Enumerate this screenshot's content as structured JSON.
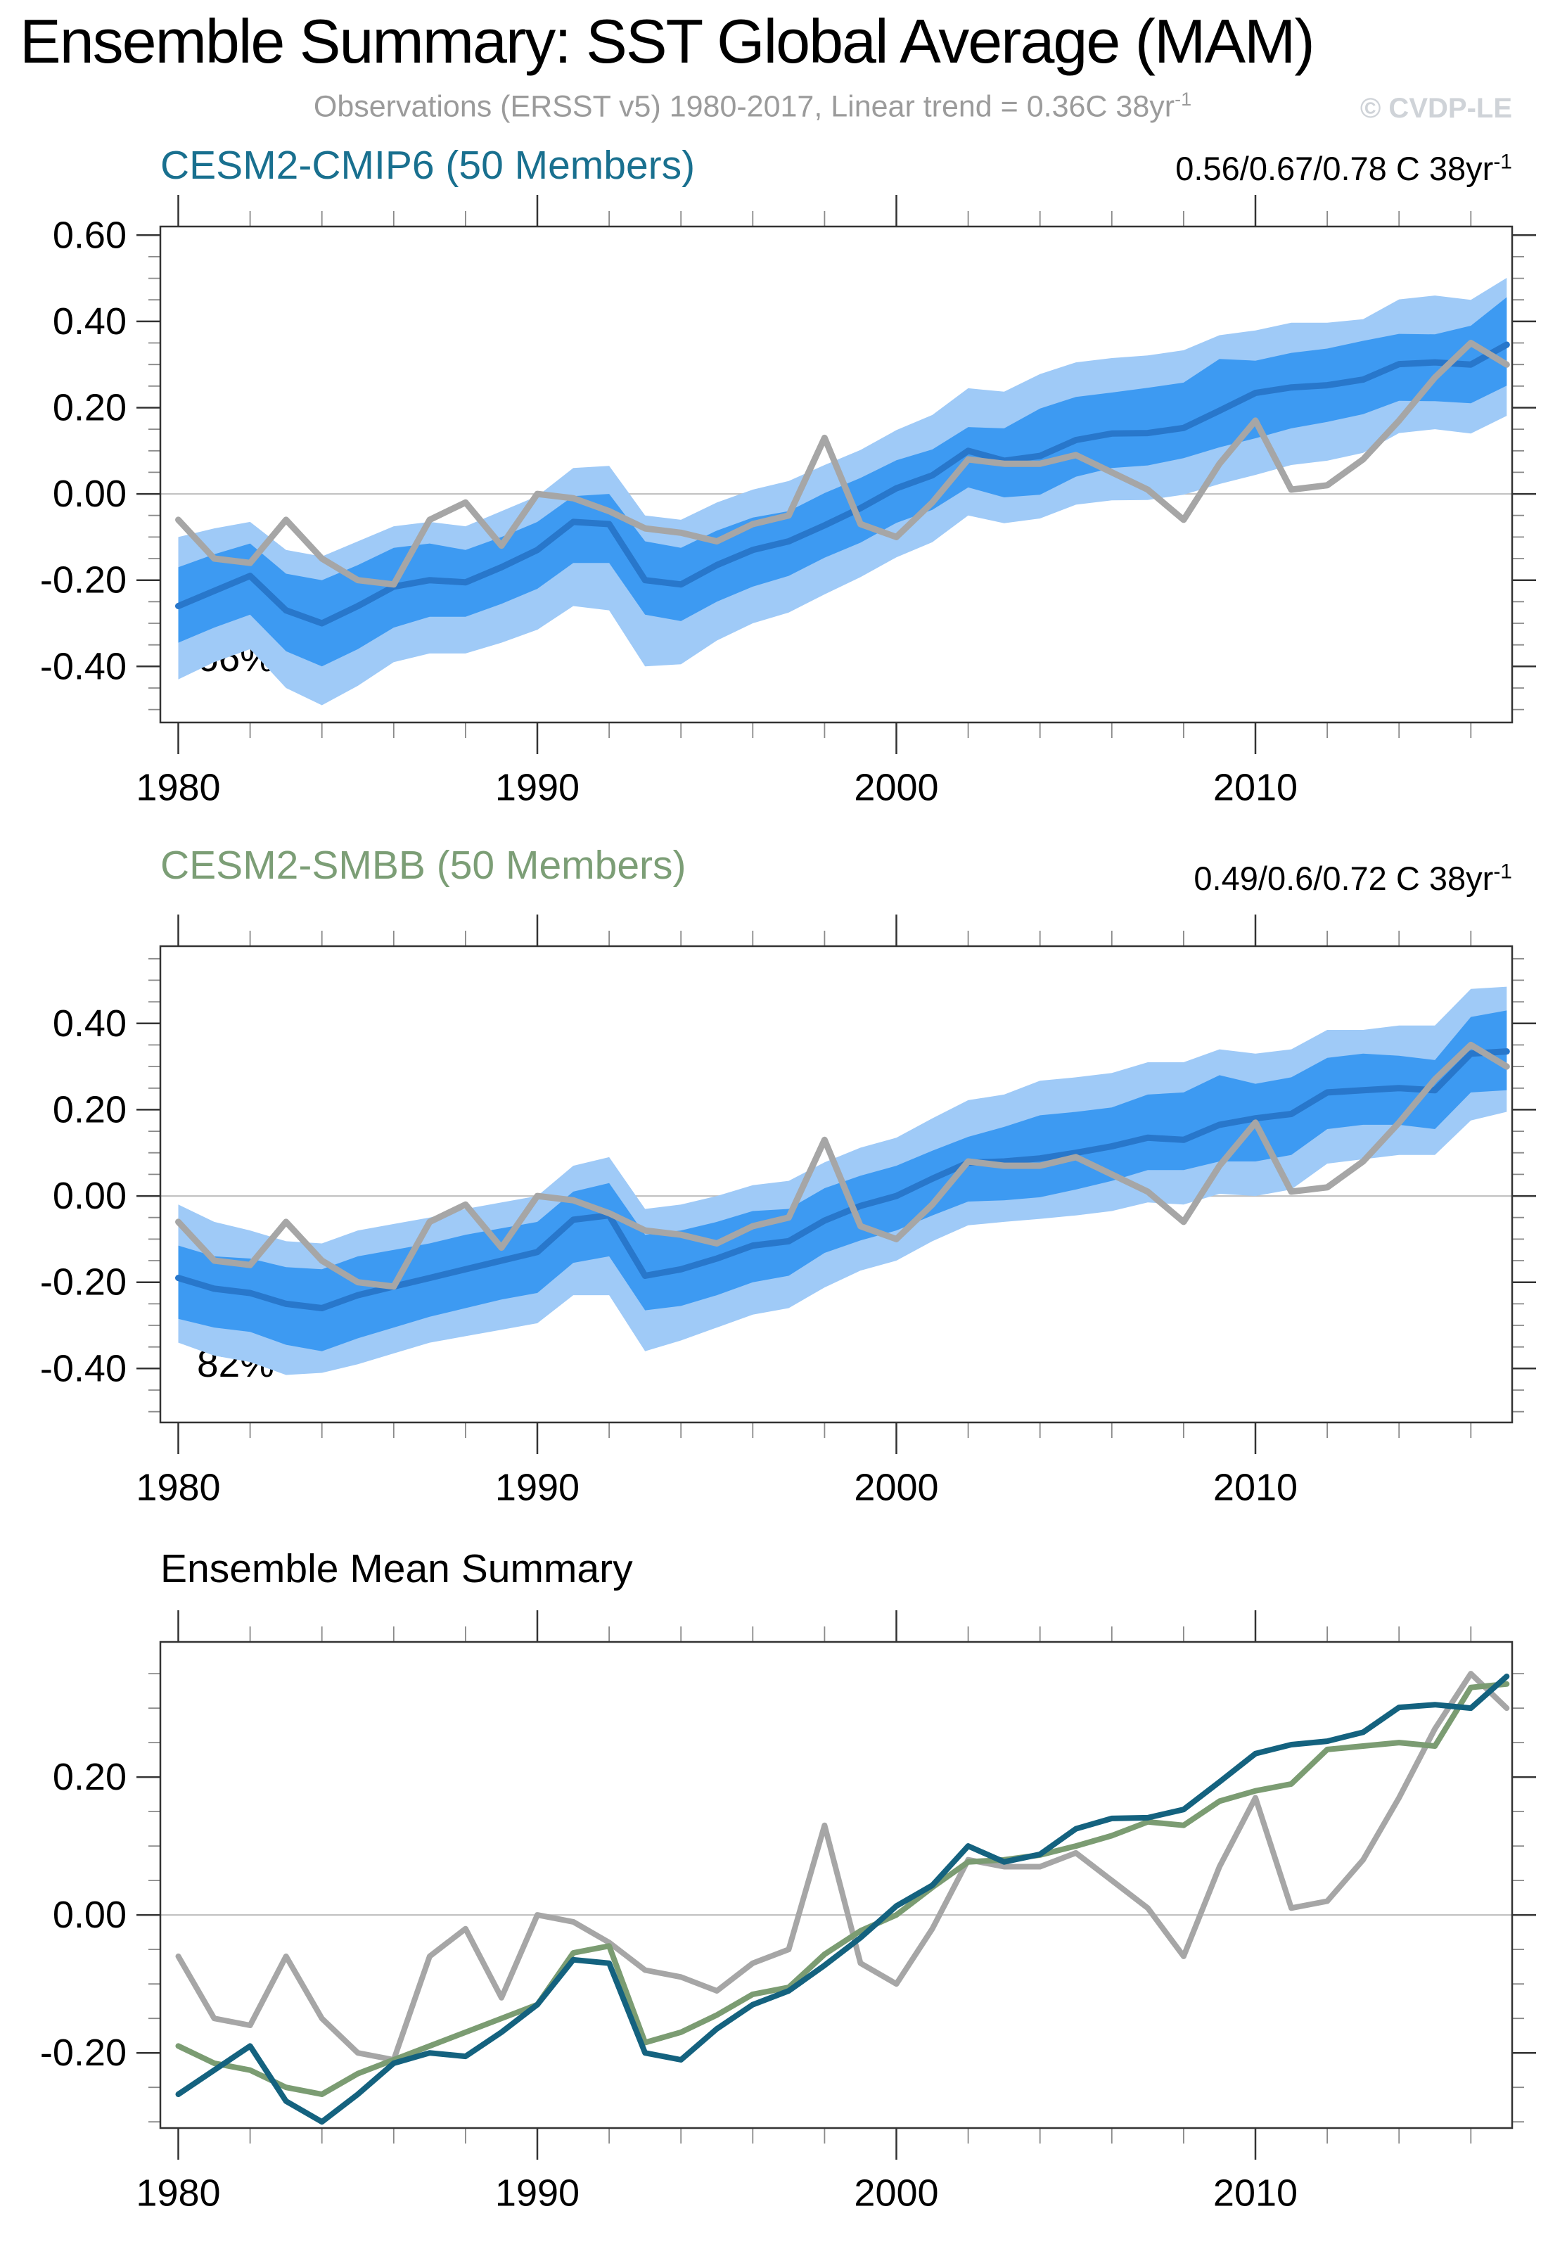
{
  "header": {
    "title": "Ensemble Summary: SST Global Average (MAM)",
    "subtitle": "Observations (ERSST v5) 1980-2017, Linear trend = 0.36C 38yr",
    "subtitle_sup": "-1",
    "watermark": "© CVDP-LE"
  },
  "colors": {
    "obs_line": "#A6A6A6",
    "ensemble_mean_line": "#2877CB",
    "cmip6_accent": "#19708F",
    "smbb_accent": "#7C9E76",
    "inner_band": "#3D9AF2",
    "outer_band": "#9FCAF7",
    "zero_line": "#BDBDBD",
    "axis_frame": "#333333",
    "minor_tick": "#8A8A8A",
    "subtitle_gray": "#9B9B9B",
    "watermark_gray": "#CFD3D8"
  },
  "chart_data": [
    {
      "id": "cesm2-cmip6",
      "type": "line",
      "title": "CESM2-CMIP6 (50 Members)",
      "title_color": "#19708F",
      "trend_label": "0.56/0.67/0.78 C 38yr",
      "trend_sup": "-1",
      "percent_label": "66%",
      "xlim": [
        1979.5,
        2017.15
      ],
      "ylim": [
        -0.53,
        0.62
      ],
      "xticks": [
        1980,
        1990,
        2000,
        2010
      ],
      "yticks": [
        0.6,
        0.4,
        0.2,
        0.0,
        -0.2,
        -0.4
      ],
      "grid": "zero-line-only",
      "x": [
        1980,
        1981,
        1982,
        1983,
        1984,
        1985,
        1986,
        1987,
        1988,
        1989,
        1990,
        1991,
        1992,
        1993,
        1994,
        1995,
        1996,
        1997,
        1998,
        1999,
        2000,
        2001,
        2002,
        2003,
        2004,
        2005,
        2006,
        2007,
        2008,
        2009,
        2010,
        2011,
        2012,
        2013,
        2014,
        2015,
        2016,
        2017
      ],
      "bands": [
        {
          "name": "ensemble-spread-outer",
          "color": "#9FCAF7",
          "upper": [
            -0.1,
            -0.08,
            -0.065,
            -0.13,
            -0.145,
            -0.11,
            -0.075,
            -0.065,
            -0.075,
            -0.04,
            -0.005,
            0.06,
            0.065,
            -0.05,
            -0.06,
            -0.02,
            0.01,
            0.03,
            0.067,
            0.102,
            0.148,
            0.183,
            0.245,
            0.237,
            0.278,
            0.305,
            0.315,
            0.321,
            0.333,
            0.368,
            0.379,
            0.397,
            0.397,
            0.405,
            0.451,
            0.46,
            0.45,
            0.501
          ],
          "lower": [
            -0.43,
            -0.39,
            -0.36,
            -0.45,
            -0.49,
            -0.445,
            -0.39,
            -0.37,
            -0.37,
            -0.345,
            -0.315,
            -0.26,
            -0.27,
            -0.4,
            -0.395,
            -0.34,
            -0.3,
            -0.275,
            -0.233,
            -0.193,
            -0.147,
            -0.112,
            -0.05,
            -0.068,
            -0.057,
            -0.025,
            -0.015,
            -0.014,
            -0.002,
            0.023,
            0.044,
            0.067,
            0.077,
            0.095,
            0.141,
            0.15,
            0.14,
            0.181
          ]
        },
        {
          "name": "ensemble-spread-inner",
          "color": "#3D9AF2",
          "upper": [
            -0.17,
            -0.14,
            -0.115,
            -0.185,
            -0.2,
            -0.165,
            -0.125,
            -0.115,
            -0.13,
            -0.1,
            -0.065,
            -0.005,
            0.0,
            -0.11,
            -0.125,
            -0.085,
            -0.055,
            -0.04,
            0.002,
            0.037,
            0.078,
            0.103,
            0.155,
            0.152,
            0.198,
            0.225,
            0.235,
            0.246,
            0.258,
            0.313,
            0.309,
            0.327,
            0.337,
            0.355,
            0.371,
            0.37,
            0.39,
            0.456
          ],
          "lower": [
            -0.345,
            -0.31,
            -0.28,
            -0.365,
            -0.4,
            -0.36,
            -0.31,
            -0.285,
            -0.285,
            -0.255,
            -0.22,
            -0.16,
            -0.16,
            -0.28,
            -0.295,
            -0.25,
            -0.215,
            -0.19,
            -0.148,
            -0.113,
            -0.067,
            -0.037,
            0.015,
            -0.008,
            -0.002,
            0.04,
            0.06,
            0.066,
            0.083,
            0.108,
            0.129,
            0.152,
            0.167,
            0.185,
            0.216,
            0.215,
            0.21,
            0.251
          ]
        }
      ],
      "series": [
        {
          "name": "CESM2-CMIP6 ensemble mean",
          "color": "#2877CB",
          "values": [
            -0.26,
            -0.225,
            -0.19,
            -0.27,
            -0.3,
            -0.26,
            -0.215,
            -0.2,
            -0.205,
            -0.17,
            -0.13,
            -0.065,
            -0.07,
            -0.2,
            -0.21,
            -0.165,
            -0.13,
            -0.11,
            -0.073,
            -0.033,
            0.013,
            0.043,
            0.1,
            0.077,
            0.088,
            0.125,
            0.14,
            0.141,
            0.153,
            0.193,
            0.234,
            0.247,
            0.252,
            0.265,
            0.301,
            0.305,
            0.3,
            0.346
          ]
        },
        {
          "name": "Observations (ERSST v5)",
          "color": "#A6A6A6",
          "values": [
            -0.06,
            -0.15,
            -0.16,
            -0.06,
            -0.15,
            -0.2,
            -0.21,
            -0.06,
            -0.02,
            -0.12,
            0.0,
            -0.01,
            -0.04,
            -0.08,
            -0.09,
            -0.11,
            -0.07,
            -0.05,
            0.13,
            -0.07,
            -0.1,
            -0.02,
            0.08,
            0.07,
            0.07,
            0.09,
            0.05,
            0.01,
            -0.06,
            0.07,
            0.17,
            0.01,
            0.02,
            0.08,
            0.17,
            0.27,
            0.35,
            0.3
          ]
        }
      ]
    },
    {
      "id": "cesm2-smbb",
      "type": "line",
      "title": "CESM2-SMBB (50 Members)",
      "title_color": "#7C9E76",
      "trend_label": "0.49/0.6/0.72 C 38yr",
      "trend_sup": "-1",
      "percent_label": "82%",
      "xlim": [
        1979.5,
        2017.15
      ],
      "ylim": [
        -0.525,
        0.579
      ],
      "xticks": [
        1980,
        1990,
        2000,
        2010
      ],
      "yticks": [
        0.4,
        0.2,
        0.0,
        -0.2,
        -0.4
      ],
      "grid": "zero-line-only",
      "x": [
        1980,
        1981,
        1982,
        1983,
        1984,
        1985,
        1986,
        1987,
        1988,
        1989,
        1990,
        1991,
        1992,
        1993,
        1994,
        1995,
        1996,
        1997,
        1998,
        1999,
        2000,
        2001,
        2002,
        2003,
        2004,
        2005,
        2006,
        2007,
        2008,
        2009,
        2010,
        2011,
        2012,
        2013,
        2014,
        2015,
        2016,
        2017
      ],
      "bands": [
        {
          "name": "ensemble-spread-outer",
          "color": "#9FCAF7",
          "upper": [
            -0.02,
            -0.06,
            -0.08,
            -0.105,
            -0.11,
            -0.08,
            -0.065,
            -0.05,
            -0.03,
            -0.015,
            0.0,
            0.07,
            0.09,
            -0.03,
            -0.02,
            0.0,
            0.025,
            0.035,
            0.078,
            0.112,
            0.135,
            0.18,
            0.222,
            0.235,
            0.267,
            0.275,
            0.285,
            0.31,
            0.31,
            0.34,
            0.33,
            0.34,
            0.385,
            0.385,
            0.395,
            0.395,
            0.48,
            0.485
          ],
          "lower": [
            -0.34,
            -0.37,
            -0.385,
            -0.415,
            -0.41,
            -0.39,
            -0.365,
            -0.34,
            -0.325,
            -0.31,
            -0.295,
            -0.23,
            -0.23,
            -0.36,
            -0.335,
            -0.305,
            -0.275,
            -0.26,
            -0.212,
            -0.173,
            -0.15,
            -0.105,
            -0.068,
            -0.06,
            -0.053,
            -0.045,
            -0.035,
            -0.015,
            -0.02,
            0.005,
            0.0,
            0.015,
            0.075,
            0.085,
            0.095,
            0.095,
            0.175,
            0.195
          ]
        },
        {
          "name": "ensemble-spread-inner",
          "color": "#3D9AF2",
          "upper": [
            -0.115,
            -0.14,
            -0.145,
            -0.165,
            -0.17,
            -0.14,
            -0.125,
            -0.11,
            -0.09,
            -0.075,
            -0.06,
            0.01,
            0.03,
            -0.09,
            -0.08,
            -0.06,
            -0.035,
            -0.03,
            0.018,
            0.047,
            0.07,
            0.105,
            0.137,
            0.16,
            0.187,
            0.195,
            0.205,
            0.235,
            0.24,
            0.28,
            0.26,
            0.275,
            0.32,
            0.33,
            0.325,
            0.315,
            0.415,
            0.43
          ],
          "lower": [
            -0.285,
            -0.305,
            -0.315,
            -0.345,
            -0.36,
            -0.33,
            -0.305,
            -0.28,
            -0.26,
            -0.24,
            -0.225,
            -0.155,
            -0.14,
            -0.265,
            -0.255,
            -0.23,
            -0.2,
            -0.185,
            -0.132,
            -0.103,
            -0.08,
            -0.045,
            -0.013,
            -0.01,
            -0.003,
            0.015,
            0.035,
            0.06,
            0.06,
            0.08,
            0.08,
            0.095,
            0.155,
            0.165,
            0.165,
            0.155,
            0.24,
            0.245
          ]
        }
      ],
      "series": [
        {
          "name": "CESM2-SMBB ensemble mean",
          "color": "#2877CB",
          "values": [
            -0.19,
            -0.215,
            -0.225,
            -0.25,
            -0.26,
            -0.23,
            -0.21,
            -0.19,
            -0.17,
            -0.15,
            -0.13,
            -0.055,
            -0.045,
            -0.185,
            -0.17,
            -0.145,
            -0.115,
            -0.105,
            -0.057,
            -0.023,
            0.0,
            0.04,
            0.077,
            0.08,
            0.087,
            0.1,
            0.115,
            0.135,
            0.13,
            0.165,
            0.18,
            0.19,
            0.24,
            0.245,
            0.25,
            0.245,
            0.33,
            0.335
          ]
        },
        {
          "name": "Observations (ERSST v5)",
          "color": "#A6A6A6",
          "values": [
            -0.06,
            -0.15,
            -0.16,
            -0.06,
            -0.15,
            -0.2,
            -0.21,
            -0.06,
            -0.02,
            -0.12,
            0.0,
            -0.01,
            -0.04,
            -0.08,
            -0.09,
            -0.11,
            -0.07,
            -0.05,
            0.13,
            -0.07,
            -0.1,
            -0.02,
            0.08,
            0.07,
            0.07,
            0.09,
            0.05,
            0.01,
            -0.06,
            0.07,
            0.17,
            0.01,
            0.02,
            0.08,
            0.17,
            0.27,
            0.35,
            0.3
          ]
        }
      ]
    },
    {
      "id": "ensemble-mean-summary",
      "type": "line",
      "title": "Ensemble Mean Summary",
      "title_color": "#000000",
      "xlim": [
        1979.5,
        2017.15
      ],
      "ylim": [
        -0.309,
        0.396
      ],
      "xticks": [
        1980,
        1990,
        2000,
        2010
      ],
      "yticks": [
        0.2,
        0.0,
        -0.2
      ],
      "grid": "zero-line-only",
      "x": [
        1980,
        1981,
        1982,
        1983,
        1984,
        1985,
        1986,
        1987,
        1988,
        1989,
        1990,
        1991,
        1992,
        1993,
        1994,
        1995,
        1996,
        1997,
        1998,
        1999,
        2000,
        2001,
        2002,
        2003,
        2004,
        2005,
        2006,
        2007,
        2008,
        2009,
        2010,
        2011,
        2012,
        2013,
        2014,
        2015,
        2016,
        2017
      ],
      "series": [
        {
          "name": "Observations (ERSST v5)",
          "color": "#A6A6A6",
          "values": [
            -0.06,
            -0.15,
            -0.16,
            -0.06,
            -0.15,
            -0.2,
            -0.21,
            -0.06,
            -0.02,
            -0.12,
            0.0,
            -0.01,
            -0.04,
            -0.08,
            -0.09,
            -0.11,
            -0.07,
            -0.05,
            0.13,
            -0.07,
            -0.1,
            -0.02,
            0.08,
            0.07,
            0.07,
            0.09,
            0.05,
            0.01,
            -0.06,
            0.07,
            0.17,
            0.01,
            0.02,
            0.08,
            0.17,
            0.27,
            0.35,
            0.3
          ]
        },
        {
          "name": "CESM2-SMBB ensemble mean",
          "color": "#7B9C72",
          "values": [
            -0.19,
            -0.215,
            -0.225,
            -0.25,
            -0.26,
            -0.23,
            -0.21,
            -0.19,
            -0.17,
            -0.15,
            -0.13,
            -0.055,
            -0.045,
            -0.185,
            -0.17,
            -0.145,
            -0.115,
            -0.105,
            -0.057,
            -0.023,
            0.0,
            0.04,
            0.077,
            0.08,
            0.087,
            0.1,
            0.115,
            0.135,
            0.13,
            0.165,
            0.18,
            0.19,
            0.24,
            0.245,
            0.25,
            0.245,
            0.33,
            0.335
          ]
        },
        {
          "name": "CESM2-CMIP6 ensemble mean",
          "color": "#14627F",
          "values": [
            -0.26,
            -0.225,
            -0.19,
            -0.27,
            -0.3,
            -0.26,
            -0.215,
            -0.2,
            -0.205,
            -0.17,
            -0.13,
            -0.065,
            -0.07,
            -0.2,
            -0.21,
            -0.165,
            -0.13,
            -0.11,
            -0.073,
            -0.033,
            0.013,
            0.043,
            0.1,
            0.077,
            0.088,
            0.125,
            0.14,
            0.141,
            0.153,
            0.193,
            0.234,
            0.247,
            0.252,
            0.265,
            0.301,
            0.305,
            0.3,
            0.346
          ]
        }
      ]
    }
  ]
}
